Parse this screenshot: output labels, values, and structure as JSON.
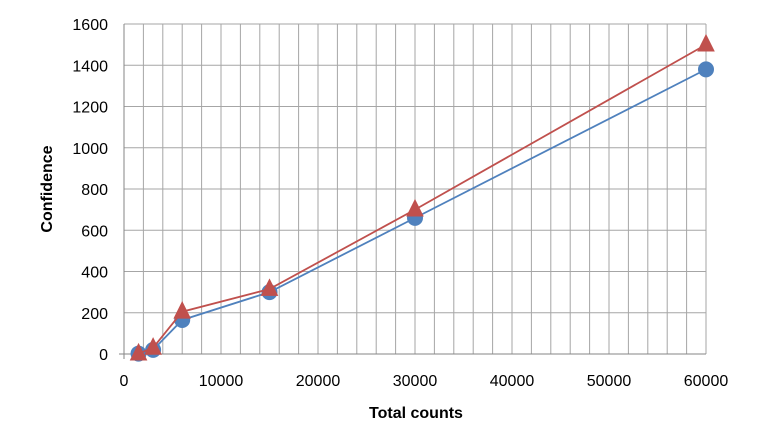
{
  "chart_data": {
    "type": "line",
    "title": "",
    "xlabel": "Total counts",
    "ylabel": "Confidence",
    "xlim": [
      0,
      60000
    ],
    "ylim": [
      0,
      1600
    ],
    "x_ticks": [
      "0",
      "10000",
      "20000",
      "30000",
      "40000",
      "50000",
      "60000"
    ],
    "y_ticks": [
      "0",
      "200",
      "400",
      "600",
      "800",
      "1000",
      "1200",
      "1400",
      "1600"
    ],
    "grid": true,
    "legend": "none",
    "series": [
      {
        "marker": "circle",
        "color": "#4F81BD",
        "points": [
          [
            1500,
            2
          ],
          [
            3000,
            20
          ],
          [
            6000,
            165
          ],
          [
            15000,
            300
          ],
          [
            30000,
            660
          ],
          [
            60000,
            1380
          ]
        ]
      },
      {
        "marker": "triangle",
        "color": "#C0504D",
        "points": [
          [
            1500,
            2
          ],
          [
            3000,
            30
          ],
          [
            6000,
            205
          ],
          [
            15000,
            315
          ],
          [
            30000,
            700
          ],
          [
            60000,
            1500
          ]
        ]
      }
    ]
  }
}
